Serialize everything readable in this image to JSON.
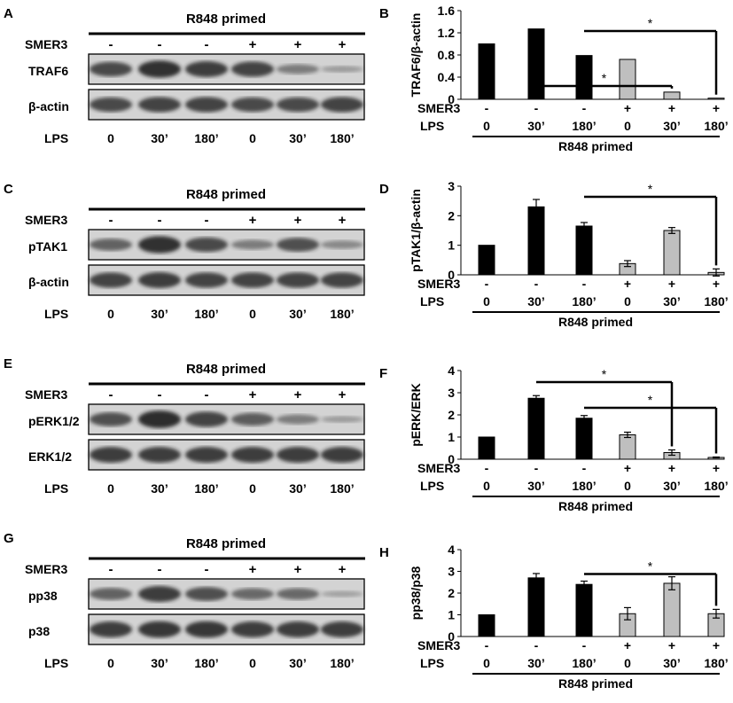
{
  "colors": {
    "primed_bar": "#000000",
    "smer3_bar": "#bfbfbf",
    "band": "#222222",
    "blot_bg": "#d3d3d3"
  },
  "shared": {
    "primed_label": "R848 primed",
    "smer3_label": "SMER3",
    "lps_label": "LPS",
    "smer3_values": [
      "-",
      "-",
      "-",
      "+",
      "+",
      "+"
    ],
    "lps_values": [
      "0",
      "30’",
      "180’",
      "0",
      "30’",
      "180’"
    ]
  },
  "blots": [
    {
      "letter": "A",
      "rows": [
        "TRAF6",
        "β-actin"
      ]
    },
    {
      "letter": "C",
      "rows": [
        "pTAK1",
        "β-actin"
      ]
    },
    {
      "letter": "E",
      "rows": [
        "pERK1/2",
        "ERK1/2"
      ]
    },
    {
      "letter": "G",
      "rows": [
        "pp38",
        "p38"
      ]
    }
  ],
  "chart_data": [
    {
      "panel": "B",
      "type": "bar",
      "categories": [
        "0",
        "30’",
        "180’",
        "0",
        "30’",
        "180’"
      ],
      "ylabel": "TRAF6/β-actin",
      "ylim": [
        0,
        1.6
      ],
      "ytick_labels": [
        "0",
        "0.4",
        "0.8",
        "1.2",
        "1.6"
      ],
      "values": [
        1.0,
        1.27,
        0.79,
        0.72,
        0.13,
        0.02
      ],
      "errors": [
        0,
        0,
        0,
        0,
        0,
        0
      ],
      "significance": [
        "*",
        "*"
      ]
    },
    {
      "panel": "D",
      "type": "bar",
      "categories": [
        "0",
        "30’",
        "180’",
        "0",
        "30’",
        "180’"
      ],
      "ylabel": "pTAK1/β-actin",
      "ylim": [
        0,
        3
      ],
      "ytick_labels": [
        "0",
        "1",
        "2",
        "3"
      ],
      "values": [
        1.0,
        2.3,
        1.65,
        0.38,
        1.5,
        0.08
      ],
      "errors": [
        0,
        0.25,
        0.12,
        0.1,
        0.1,
        0.12
      ],
      "significance": [
        "*"
      ]
    },
    {
      "panel": "F",
      "type": "bar",
      "categories": [
        "0",
        "30’",
        "180’",
        "0",
        "30’",
        "180’"
      ],
      "ylabel": "pERK/ERK",
      "ylim": [
        0,
        4
      ],
      "ytick_labels": [
        "0",
        "1",
        "2",
        "3",
        "4"
      ],
      "values": [
        1.0,
        2.75,
        1.85,
        1.1,
        0.3,
        0.08
      ],
      "errors": [
        0,
        0.12,
        0.12,
        0.12,
        0.12,
        0.02
      ],
      "significance": [
        "*",
        "*"
      ]
    },
    {
      "panel": "H",
      "type": "bar",
      "categories": [
        "0",
        "30’",
        "180’",
        "0",
        "30’",
        "180’"
      ],
      "ylabel": "pp38/p38",
      "ylim": [
        0,
        4
      ],
      "ytick_labels": [
        "0",
        "1",
        "2",
        "3",
        "4"
      ],
      "values": [
        1.0,
        2.7,
        2.4,
        1.05,
        2.45,
        1.05
      ],
      "errors": [
        0,
        0.2,
        0.15,
        0.28,
        0.3,
        0.2
      ],
      "significance": [
        "*"
      ]
    }
  ]
}
